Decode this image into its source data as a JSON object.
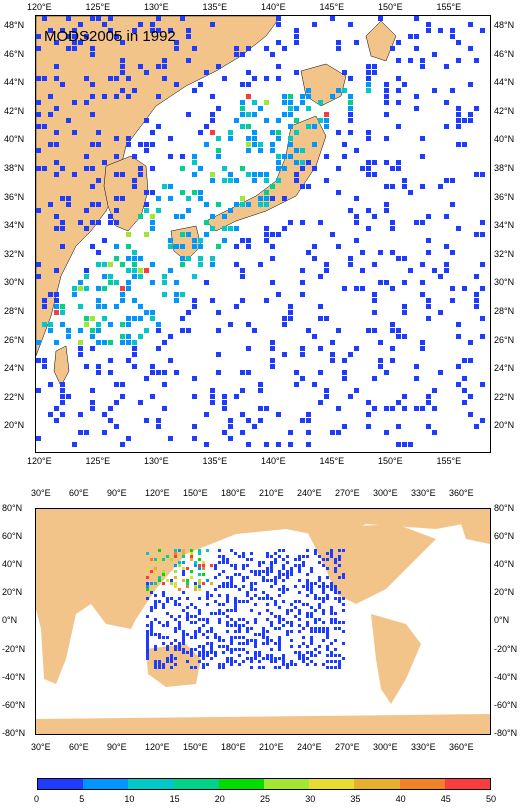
{
  "top_map": {
    "title": "MODS2005 in 1992",
    "x_ticks": [
      "120°E",
      "125°E",
      "130°E",
      "135°E",
      "140°E",
      "145°E",
      "150°E",
      "155°E"
    ],
    "y_ticks": [
      "48°N",
      "46°N",
      "44°N",
      "42°N",
      "40°N",
      "38°N",
      "36°N",
      "34°N",
      "32°N",
      "30°N",
      "28°N",
      "26°N",
      "24°N",
      "22°N",
      "20°N"
    ]
  },
  "bottom_map": {
    "x_ticks": [
      "30°E",
      "60°E",
      "90°E",
      "120°E",
      "150°E",
      "180°E",
      "210°E",
      "240°E",
      "270°E",
      "300°E",
      "330°E",
      "360°E"
    ],
    "y_ticks": [
      "80°N",
      "60°N",
      "40°N",
      "20°N",
      "0°N",
      "-20°N",
      "-40°N",
      "-60°N",
      "-80°N"
    ]
  },
  "colorbar": {
    "labels": [
      "0",
      "5",
      "10",
      "15",
      "20",
      "25",
      "30",
      "35",
      "40",
      "45",
      "50"
    ],
    "colors": [
      "#1e3cff",
      "#0096ff",
      "#00c8c8",
      "#00d28c",
      "#00dc00",
      "#a0e632",
      "#e6dc32",
      "#e6af2d",
      "#f08228",
      "#fa3c3c"
    ]
  },
  "colors": {
    "land": "#f2c48a",
    "ocean": "#ffffff",
    "sparse": "#1e3cff"
  }
}
